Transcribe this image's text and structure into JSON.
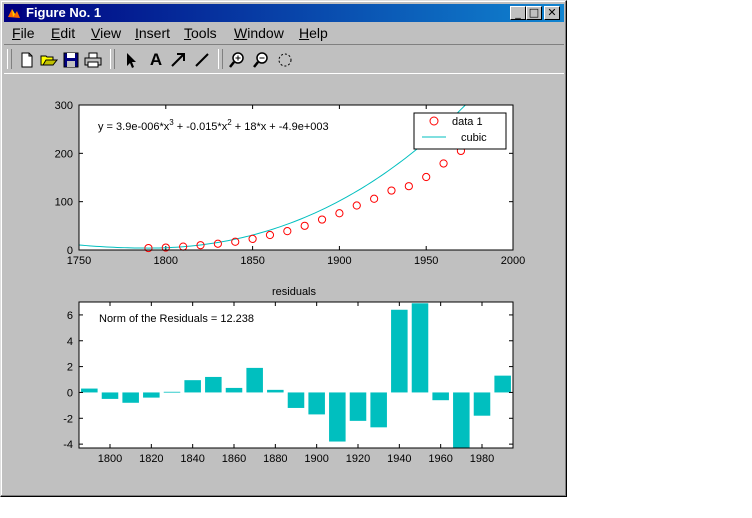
{
  "window": {
    "title": "Figure No. 1",
    "minimize": "_",
    "maximize": "□",
    "close": "✕"
  },
  "menu": [
    {
      "label": "File",
      "accel": "F"
    },
    {
      "label": "Edit",
      "accel": "E"
    },
    {
      "label": "View",
      "accel": "V"
    },
    {
      "label": "Insert",
      "accel": "I"
    },
    {
      "label": "Tools",
      "accel": "T"
    },
    {
      "label": "Window",
      "accel": "W"
    },
    {
      "label": "Help",
      "accel": "H"
    }
  ],
  "toolbar": {
    "icons": [
      "new-file-icon",
      "open-file-icon",
      "save-icon",
      "print-icon",
      "select-arrow-icon",
      "insert-text-icon",
      "insert-arrow-icon",
      "insert-line-icon",
      "zoom-in-icon",
      "zoom-out-icon",
      "rotate-icon"
    ],
    "text_tool": "A"
  },
  "chart_data": [
    {
      "type": "scatter",
      "title": "",
      "xlim": [
        1750,
        2000
      ],
      "ylim": [
        0,
        300
      ],
      "xticks": [
        1750,
        1800,
        1850,
        1900,
        1950,
        2000
      ],
      "yticks": [
        0,
        100,
        200,
        300
      ],
      "equation": {
        "lead": "y = 3.9e-006*x",
        "p3": "3",
        "mid": " + -0.015*x",
        "p2": "2",
        "tail": " + 18*x + -4.9e+003"
      },
      "legend": {
        "position": "top-right",
        "marker_label": "data 1",
        "line_label": "cubic"
      },
      "series": [
        {
          "name": "data 1",
          "marker": "o",
          "color": "#ff0000",
          "x": [
            1790,
            1800,
            1810,
            1820,
            1830,
            1840,
            1850,
            1860,
            1870,
            1880,
            1890,
            1900,
            1910,
            1920,
            1930,
            1940,
            1950,
            1960,
            1970,
            1980,
            1990
          ],
          "y": [
            4,
            5,
            7,
            10,
            13,
            17,
            23,
            31,
            39,
            50,
            63,
            76,
            92,
            106,
            123,
            132,
            151,
            179,
            205,
            227,
            249
          ]
        },
        {
          "name": "cubic",
          "line": true,
          "color": "#00bfbf",
          "coeffs": {
            "a": 3.899e-06,
            "b": -0.0151,
            "c": 18.0,
            "d": -4900
          }
        }
      ]
    },
    {
      "type": "bar",
      "title": "residuals",
      "annotation": "Norm of the Residuals = 12.238",
      "xlim": [
        1785,
        1995
      ],
      "ylim": [
        -4.3,
        7
      ],
      "xticks": [
        1800,
        1820,
        1840,
        1860,
        1880,
        1900,
        1920,
        1940,
        1960,
        1980
      ],
      "yticks": [
        -4,
        -2,
        0,
        2,
        4,
        6
      ],
      "color": "#00bfbf",
      "x": [
        1790,
        1800,
        1810,
        1820,
        1830,
        1840,
        1850,
        1860,
        1870,
        1880,
        1890,
        1900,
        1910,
        1920,
        1930,
        1940,
        1950,
        1960,
        1970,
        1980,
        1990
      ],
      "values": [
        0.3,
        -0.5,
        -0.8,
        -0.4,
        0.05,
        0.95,
        1.2,
        0.35,
        1.9,
        0.2,
        -1.2,
        -1.7,
        -3.8,
        -2.2,
        -2.7,
        6.4,
        6.9,
        -0.6,
        -4.3,
        -1.8,
        1.3
      ]
    }
  ]
}
